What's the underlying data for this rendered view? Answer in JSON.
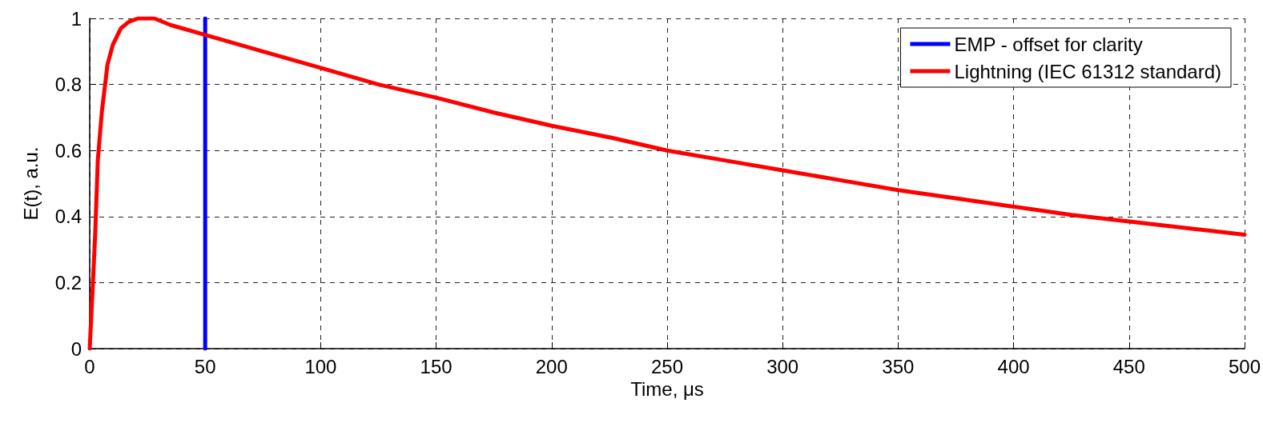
{
  "chart_data": {
    "type": "line",
    "xlabel": "Time, μs",
    "ylabel": "E(t), a.u.",
    "xlim": [
      0,
      500
    ],
    "xticks": [
      0,
      50,
      100,
      150,
      200,
      250,
      300,
      350,
      400,
      450,
      500
    ],
    "ylim": [
      0,
      1
    ],
    "yticks": [
      0,
      0.2,
      0.4,
      0.6,
      0.8,
      1
    ],
    "grid": true,
    "legend": "top right",
    "marker": "none",
    "series": [
      {
        "name": "EMP - offset for clarity",
        "color": "#0000ff",
        "x": [
          50,
          50,
          50
        ],
        "values": [
          0,
          0.56,
          1
        ]
      },
      {
        "name": "Lightning (IEC 61312 standard)",
        "color": "#ff0000",
        "x": [
          0,
          1.2,
          2.4,
          3.5,
          5.3,
          6.5,
          7.7,
          10,
          13.5,
          17,
          21,
          28,
          35,
          50,
          75,
          100,
          125,
          150,
          175,
          200,
          225,
          250,
          275,
          300,
          325,
          350,
          375,
          400,
          425,
          450,
          475,
          500
        ],
        "values": [
          0,
          0.17,
          0.35,
          0.57,
          0.72,
          0.79,
          0.86,
          0.92,
          0.97,
          0.99,
          1,
          1,
          0.98,
          0.95,
          0.9,
          0.85,
          0.8,
          0.76,
          0.715,
          0.675,
          0.64,
          0.6,
          0.57,
          0.54,
          0.51,
          0.48,
          0.455,
          0.43,
          0.405,
          0.385,
          0.365,
          0.345
        ]
      }
    ]
  }
}
